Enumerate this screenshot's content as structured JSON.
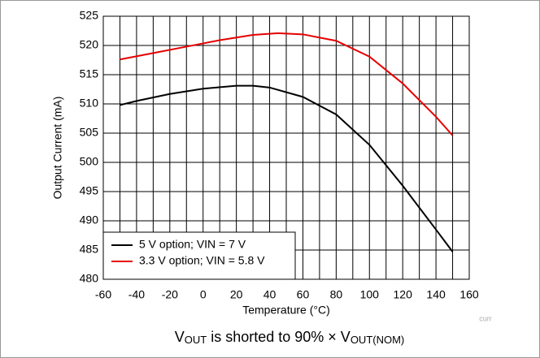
{
  "chart_data": {
    "type": "line",
    "xlabel": "Temperature (°C)",
    "ylabel": "Output Current (mA)",
    "xlim": [
      -60,
      160
    ],
    "ylim": [
      480,
      525
    ],
    "xticks": [
      -60,
      -40,
      -20,
      0,
      20,
      40,
      60,
      80,
      100,
      120,
      140,
      160
    ],
    "x_minor_ticks": [
      -50,
      -30,
      -10,
      10,
      30,
      50,
      70,
      90,
      110,
      130,
      150
    ],
    "yticks": [
      480,
      485,
      490,
      495,
      500,
      505,
      510,
      515,
      520,
      525
    ],
    "grid": true,
    "legend": "lower left",
    "series": [
      {
        "name": "5 V option; VIN = 7 V",
        "color": "#000000",
        "x": [
          -50,
          -40,
          -20,
          0,
          20,
          30,
          40,
          60,
          80,
          100,
          120,
          140,
          150
        ],
        "values": [
          509.8,
          510.5,
          511.7,
          512.6,
          513.1,
          513.1,
          512.8,
          511.2,
          508.2,
          503,
          496,
          488.5,
          484.7
        ]
      },
      {
        "name": "3.3 V option; VIN = 5.8 V",
        "color": "#e60000",
        "x": [
          -50,
          -30,
          -10,
          10,
          30,
          45,
          60,
          80,
          100,
          120,
          140,
          150
        ],
        "values": [
          517.6,
          518.7,
          519.8,
          520.9,
          521.8,
          522.1,
          521.9,
          520.8,
          518.1,
          513.5,
          507.8,
          504.6
        ]
      }
    ],
    "watermark": "curr",
    "note_parts": [
      "V",
      "OUT",
      " is shorted to 90% × V",
      "OUT(NOM)"
    ]
  }
}
